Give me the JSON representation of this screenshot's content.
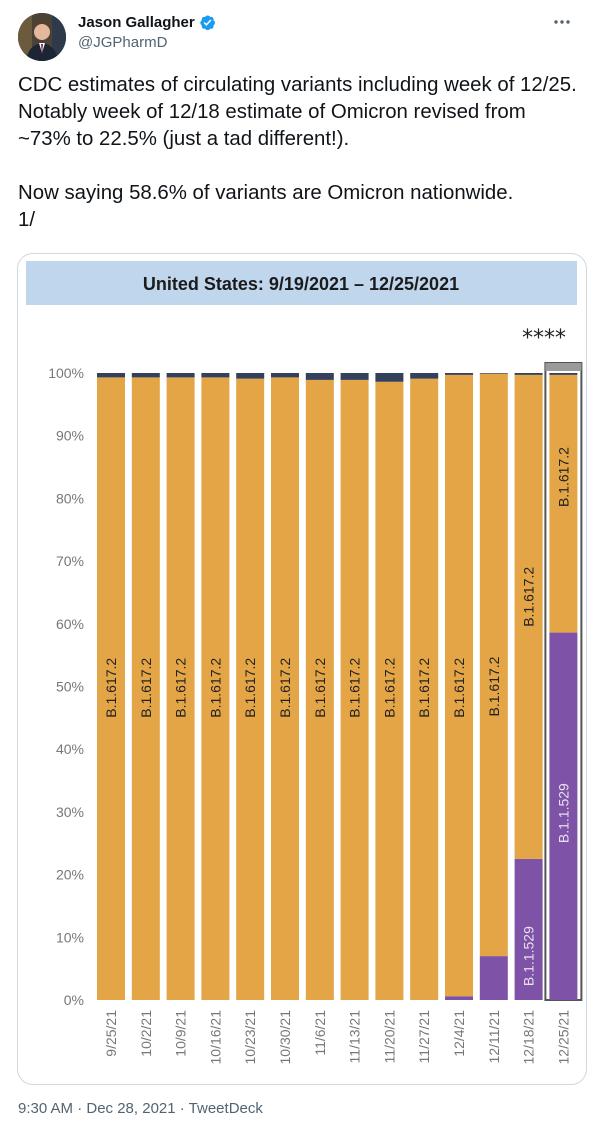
{
  "tweet": {
    "author_name": "Jason Gallagher",
    "handle": "@JGPharmD",
    "verified": true,
    "more_icon": "more-horizontal-icon",
    "text": "CDC estimates of circulating variants including week of 12/25. Notably week of 12/18 estimate of Omicron revised from ~73% to 22.5% (just a tad different!).\n\nNow saying 58.6% of variants are Omicron nationwide.\n1/",
    "timestamp": "9:30 AM · Dec 28, 2021",
    "separator": " · ",
    "source": "TweetDeck"
  },
  "colors": {
    "delta": "#e3a545",
    "omicron": "#7e52a6",
    "other": "#33415c",
    "title_bar": "#c0d6ec",
    "verified_blue": "#1d9bf0"
  },
  "chart_data": {
    "type": "bar",
    "stacked": true,
    "title": "United States: 9/19/2021 – 12/25/2021",
    "annotation": "****",
    "categories": [
      "9/25/21",
      "10/2/21",
      "10/9/21",
      "10/16/21",
      "10/23/21",
      "10/30/21",
      "11/6/21",
      "11/13/21",
      "11/20/21",
      "11/27/21",
      "12/4/21",
      "12/11/21",
      "12/18/21",
      "12/25/21"
    ],
    "series": [
      {
        "name": "B.1.1.529",
        "values": [
          0,
          0,
          0,
          0,
          0,
          0,
          0,
          0,
          0,
          0,
          0.6,
          7.0,
          22.5,
          58.6
        ]
      },
      {
        "name": "B.1.617.2",
        "values": [
          99.3,
          99.3,
          99.3,
          99.3,
          99.1,
          99.3,
          98.9,
          98.9,
          98.6,
          99.1,
          99.1,
          92.9,
          77.2,
          41.1
        ]
      },
      {
        "name": "",
        "values": [
          0.7,
          0.7,
          0.7,
          0.7,
          0.9,
          0.7,
          1.1,
          1.1,
          1.4,
          0.9,
          0.3,
          0.1,
          0.3,
          0.3
        ]
      }
    ],
    "bar_labels": [
      {
        "index": 0,
        "series": "B.1.617.2",
        "text": "B.1.617.2"
      },
      {
        "index": 1,
        "series": "B.1.617.2",
        "text": "B.1.617.2"
      },
      {
        "index": 2,
        "series": "B.1.617.2",
        "text": "B.1.617.2"
      },
      {
        "index": 3,
        "series": "B.1.617.2",
        "text": "B.1.617.2"
      },
      {
        "index": 4,
        "series": "B.1.617.2",
        "text": "B.1.617.2"
      },
      {
        "index": 5,
        "series": "B.1.617.2",
        "text": "B.1.617.2"
      },
      {
        "index": 6,
        "series": "B.1.617.2",
        "text": "B.1.617.2"
      },
      {
        "index": 7,
        "series": "B.1.617.2",
        "text": "B.1.617.2"
      },
      {
        "index": 8,
        "series": "B.1.617.2",
        "text": "B.1.617.2"
      },
      {
        "index": 9,
        "series": "B.1.617.2",
        "text": "B.1.617.2"
      },
      {
        "index": 10,
        "series": "B.1.617.2",
        "text": "B.1.617.2"
      },
      {
        "index": 11,
        "series": "B.1.617.2",
        "text": "B.1.617.2"
      },
      {
        "index": 12,
        "series": "B.1.617.2",
        "text": "B.1.617.2"
      },
      {
        "index": 12,
        "series": "B.1.1.529",
        "text": "B.1.1.529"
      },
      {
        "index": 13,
        "series": "B.1.617.2",
        "text": "B.1.617.2"
      },
      {
        "index": 13,
        "series": "B.1.1.529",
        "text": "B.1.1.529"
      }
    ],
    "yticks": [
      "0%",
      "10%",
      "20%",
      "30%",
      "40%",
      "50%",
      "60%",
      "70%",
      "80%",
      "90%",
      "100%"
    ],
    "ylim": [
      0,
      100
    ],
    "highlighted_category": "12/25/21",
    "xlabel": "",
    "ylabel": ""
  }
}
